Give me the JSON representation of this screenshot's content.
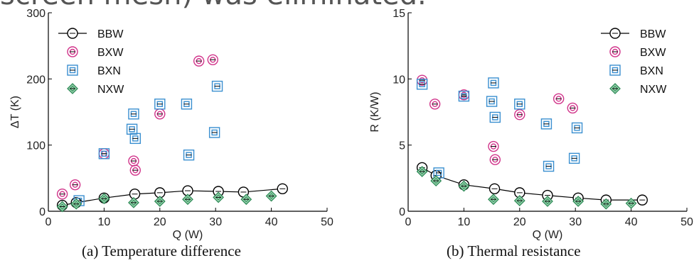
{
  "slide_text": "screen mesh) was eliminated.",
  "captions": {
    "a": "(a) Temperature difference",
    "b": "(b) Thermal resistance"
  },
  "colors": {
    "BBW": "#000000",
    "BXW": "#d1338a",
    "BXN": "#3a8fd0",
    "NXW": "#2e8b57",
    "NXW_fill": "#9fd6b3"
  },
  "chart_data": [
    {
      "type": "scatter",
      "title": "",
      "xlabel": "Q (W)",
      "ylabel": "ΔT (K)",
      "xlim": [
        0,
        50
      ],
      "ylim": [
        0,
        300
      ],
      "xticks": [
        "0",
        "10",
        "20",
        "30",
        "40",
        "50"
      ],
      "yticks": [
        "0",
        "100",
        "200",
        "300"
      ],
      "legend_position": "top-left",
      "series": [
        {
          "name": "BBW",
          "marker": "circle",
          "line": true,
          "icon": "open-circle-line",
          "points": [
            [
              2.5,
              9
            ],
            [
              5,
              13
            ],
            [
              10,
              20
            ],
            [
              15.5,
              26
            ],
            [
              20,
              28
            ],
            [
              25,
              31
            ],
            [
              30.5,
              30
            ],
            [
              35,
              29
            ],
            [
              42,
              34
            ]
          ]
        },
        {
          "name": "BXW",
          "marker": "double-circle",
          "line": false,
          "icon": "double-circle",
          "points": [
            [
              2.5,
              26
            ],
            [
              4.8,
              40
            ],
            [
              10,
              87
            ],
            [
              15.3,
              76
            ],
            [
              15.6,
              62
            ],
            [
              20,
              147
            ],
            [
              27,
              227
            ],
            [
              29.5,
              229
            ]
          ]
        },
        {
          "name": "BXN",
          "marker": "double-square",
          "line": false,
          "icon": "double-square",
          "points": [
            [
              5.5,
              16
            ],
            [
              10,
              87
            ],
            [
              15,
              124
            ],
            [
              15.3,
              147
            ],
            [
              15.6,
              110
            ],
            [
              20,
              162
            ],
            [
              24.8,
              162
            ],
            [
              25.2,
              85
            ],
            [
              29.8,
              119
            ],
            [
              30.3,
              189
            ]
          ]
        },
        {
          "name": "NXW",
          "marker": "diamond",
          "line": false,
          "icon": "filled-diamond",
          "points": [
            [
              2.5,
              7
            ],
            [
              5,
              11
            ],
            [
              10,
              19
            ],
            [
              15.3,
              13
            ],
            [
              20,
              15
            ],
            [
              25,
              18
            ],
            [
              30.5,
              21
            ],
            [
              35.5,
              18
            ],
            [
              40,
              23
            ]
          ]
        }
      ]
    },
    {
      "type": "scatter",
      "title": "",
      "xlabel": "Q (W)",
      "ylabel": "R (K/W)",
      "xlim": [
        0,
        50
      ],
      "ylim": [
        0,
        15
      ],
      "xticks": [
        "0",
        "10",
        "20",
        "30",
        "40",
        "50"
      ],
      "yticks": [
        "0",
        "5",
        "10",
        "15"
      ],
      "legend_position": "top-right",
      "series": [
        {
          "name": "BBW",
          "marker": "circle",
          "line": true,
          "icon": "open-circle-line",
          "points": [
            [
              2.5,
              3.3
            ],
            [
              5,
              2.7
            ],
            [
              10,
              2.0
            ],
            [
              15.5,
              1.7
            ],
            [
              20,
              1.4
            ],
            [
              25,
              1.2
            ],
            [
              30.5,
              1.0
            ],
            [
              35.5,
              0.85
            ],
            [
              42,
              0.85
            ]
          ]
        },
        {
          "name": "BXW",
          "marker": "double-circle",
          "line": false,
          "icon": "double-circle",
          "points": [
            [
              2.5,
              9.9
            ],
            [
              4.8,
              8.1
            ],
            [
              10,
              8.8
            ],
            [
              15.3,
              4.9
            ],
            [
              15.6,
              3.9
            ],
            [
              20,
              7.3
            ],
            [
              27,
              8.5
            ],
            [
              29.5,
              7.8
            ]
          ]
        },
        {
          "name": "BXN",
          "marker": "double-square",
          "line": false,
          "icon": "double-square",
          "points": [
            [
              2.5,
              9.6
            ],
            [
              5.5,
              2.9
            ],
            [
              10,
              8.7
            ],
            [
              15,
              8.3
            ],
            [
              15.3,
              9.7
            ],
            [
              15.6,
              7.1
            ],
            [
              20,
              8.1
            ],
            [
              24.8,
              6.6
            ],
            [
              25.2,
              3.4
            ],
            [
              29.8,
              4.0
            ],
            [
              30.3,
              6.3
            ]
          ]
        },
        {
          "name": "NXW",
          "marker": "diamond",
          "line": false,
          "icon": "filled-diamond",
          "points": [
            [
              2.5,
              3.0
            ],
            [
              5,
              2.3
            ],
            [
              10,
              1.9
            ],
            [
              15.3,
              0.9
            ],
            [
              20,
              0.8
            ],
            [
              25,
              0.75
            ],
            [
              30.5,
              0.75
            ],
            [
              35.5,
              0.55
            ],
            [
              40,
              0.6
            ]
          ]
        }
      ]
    }
  ]
}
